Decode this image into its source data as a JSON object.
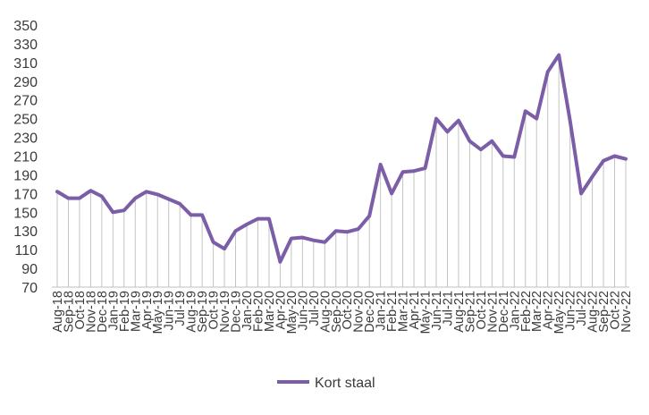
{
  "chart_data": {
    "type": "line",
    "title": "",
    "xlabel": "",
    "ylabel": "",
    "ylim": [
      70,
      350
    ],
    "yticks": [
      70,
      90,
      110,
      130,
      150,
      170,
      190,
      210,
      230,
      250,
      270,
      290,
      310,
      330,
      350
    ],
    "grid": "vertical drop lines from each point to the x-axis",
    "legend_position": "bottom-center",
    "line_color": "#7b5ea7",
    "drop_line_color": "#c3c3c3",
    "categories": [
      "Aug-18",
      "Sep-18",
      "Oct-18",
      "Nov-18",
      "Dec-18",
      "Jan-19",
      "Feb-19",
      "Mar-19",
      "Apr-19",
      "May-19",
      "Jun-19",
      "Jul-19",
      "Aug-19",
      "Sep-19",
      "Oct-19",
      "Nov-19",
      "Dec-19",
      "Jan-20",
      "Feb-20",
      "Mar-20",
      "Apr-20",
      "May-20",
      "Jun-20",
      "Jul-20",
      "Aug-20",
      "Sep-20",
      "Oct-20",
      "Nov-20",
      "Dec-20",
      "Jan-21",
      "Feb-21",
      "Mar-21",
      "Apr-21",
      "May-21",
      "Jun-21",
      "Jul-21",
      "Aug-21",
      "Sep-21",
      "Oct-21",
      "Nov-21",
      "Dec-21",
      "Jan-22",
      "Feb-22",
      "Mar-22",
      "Apr-22",
      "May-22",
      "Jun-22",
      "Jul-22",
      "Aug-22",
      "Sep-22",
      "Oct-22",
      "Nov-22"
    ],
    "tick_labels": [
      "Aug-18",
      "Sep-18",
      "Oct-18",
      "Nov-18",
      "Dec-18",
      "Jan-19",
      "Feb-19",
      "Mar-19",
      "Apr-19",
      "May-19",
      "Jun-19",
      "Jul-19",
      "Aug-19",
      "Sep-19",
      "Oct-19",
      "Nov-19",
      "Dec-19",
      "Jan-20",
      "Feb-20",
      "Mar-20",
      "Apr-20",
      "May-20",
      "Jun-20",
      "Jul-20",
      "Aug-20",
      "Sep-20",
      "Oct-20",
      "Nov-20",
      "Dec-20",
      "Jan-21",
      "Feb-21",
      "Mar-21",
      "Apr-21",
      "May-21",
      "Jun-21",
      "Jul-21",
      "Aug-21",
      "Sep-21",
      "Oct-21",
      "Nov-21",
      "Dec-21",
      "Jan-22",
      "Feb-22",
      "Mar-22",
      "Apr-22",
      "May-22",
      "Jun-22",
      "Jul-22",
      "Aug-22",
      "Sep-22",
      "Oct-22",
      "Nov-22"
    ],
    "series": [
      {
        "name": "Kort staal",
        "values": [
          172,
          165,
          165,
          173,
          167,
          150,
          152,
          165,
          172,
          169,
          164,
          159,
          147,
          147,
          118,
          111,
          130,
          137,
          143,
          143,
          97,
          122,
          123,
          120,
          118,
          130,
          129,
          132,
          146,
          201,
          170,
          193,
          194,
          197,
          250,
          236,
          248,
          226,
          217,
          226,
          210,
          209,
          258,
          250,
          300,
          318,
          248,
          170,
          188,
          205,
          210,
          207
        ]
      }
    ]
  },
  "legend": {
    "label": "Kort staal"
  }
}
